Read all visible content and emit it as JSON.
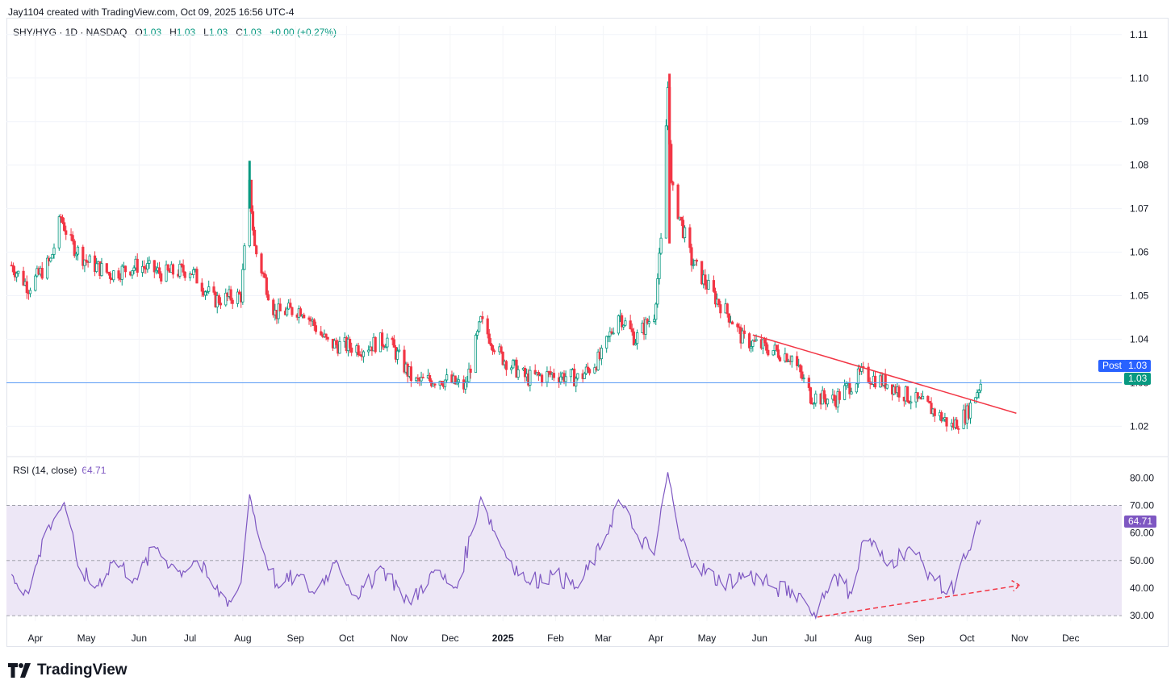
{
  "header": {
    "attribution": "Jay1104 created with TradingView.com, Oct 09, 2025 16:56 UTC-4"
  },
  "legend": {
    "symbol": "SHY/HYG · 1D · NASDAQ",
    "o_label": "O",
    "o": "1.03",
    "h_label": "H",
    "h": "1.03",
    "l_label": "L",
    "l": "1.03",
    "c_label": "C",
    "c": "1.03",
    "change": "+0.00 (+0.27%)"
  },
  "rsi_legend": {
    "label": "RSI (14, close)",
    "value": "64.71"
  },
  "tags": {
    "post_label": "Post",
    "post_value": "1.03",
    "last_value": "1.03",
    "rsi_value": "64.71"
  },
  "brand": {
    "name": "TradingView"
  },
  "colors": {
    "up": "#089981",
    "down": "#f23645",
    "rsi": "#7e57c2",
    "trendline": "#f23645",
    "lastline": "#5b9cf6",
    "post_tag": "#2962ff",
    "rsi_band": "#ede7f6"
  },
  "chart_data": [
    {
      "type": "candlestick",
      "title": "SHY/HYG · 1D · NASDAQ",
      "ylim": [
        1.016,
        1.112
      ],
      "y_ticks": [
        "1.11",
        "1.10",
        "1.09",
        "1.08",
        "1.07",
        "1.06",
        "1.05",
        "1.04",
        "1.03",
        "1.02"
      ],
      "x_ticks": [
        "Apr",
        "May",
        "Jun",
        "Jul",
        "Aug",
        "Sep",
        "Oct",
        "Nov",
        "Dec",
        "2025",
        "Feb",
        "Mar",
        "Apr",
        "May",
        "Jun",
        "Jul",
        "Aug",
        "Sep",
        "Oct",
        "Nov",
        "Dec"
      ],
      "x_range": [
        "2024-03-15",
        "2025-12-31"
      ],
      "close_path": [
        [
          "2024-03-18",
          1.057
        ],
        [
          "2024-03-28",
          1.052
        ],
        [
          "2024-04-10",
          1.058
        ],
        [
          "2024-04-16",
          1.068
        ],
        [
          "2024-04-22",
          1.062
        ],
        [
          "2024-05-01",
          1.058
        ],
        [
          "2024-05-15",
          1.055
        ],
        [
          "2024-06-01",
          1.057
        ],
        [
          "2024-06-15",
          1.055
        ],
        [
          "2024-07-01",
          1.056
        ],
        [
          "2024-07-15",
          1.049
        ],
        [
          "2024-07-31",
          1.05
        ],
        [
          "2024-08-05",
          1.075
        ],
        [
          "2024-08-08",
          1.061
        ],
        [
          "2024-08-20",
          1.046
        ],
        [
          "2024-09-05",
          1.047
        ],
        [
          "2024-09-20",
          1.039
        ],
        [
          "2024-10-10",
          1.038
        ],
        [
          "2024-10-25",
          1.04
        ],
        [
          "2024-11-10",
          1.03
        ],
        [
          "2024-11-25",
          1.031
        ],
        [
          "2024-12-10",
          1.029
        ],
        [
          "2024-12-19",
          1.044
        ],
        [
          "2024-12-31",
          1.036
        ],
        [
          "2025-01-15",
          1.031
        ],
        [
          "2025-01-31",
          1.032
        ],
        [
          "2025-02-15",
          1.031
        ],
        [
          "2025-02-28",
          1.036
        ],
        [
          "2025-03-10",
          1.046
        ],
        [
          "2025-03-20",
          1.04
        ],
        [
          "2025-03-31",
          1.046
        ],
        [
          "2025-04-04",
          1.062
        ],
        [
          "2025-04-08",
          1.098
        ],
        [
          "2025-04-10",
          1.075
        ],
        [
          "2025-04-15",
          1.068
        ],
        [
          "2025-04-22",
          1.058
        ],
        [
          "2025-05-05",
          1.05
        ],
        [
          "2025-05-15",
          1.045
        ],
        [
          "2025-05-22",
          1.04
        ],
        [
          "2025-06-05",
          1.038
        ],
        [
          "2025-06-20",
          1.036
        ],
        [
          "2025-07-01",
          1.027
        ],
        [
          "2025-07-15",
          1.026
        ],
        [
          "2025-07-31",
          1.032
        ],
        [
          "2025-08-15",
          1.03
        ],
        [
          "2025-08-31",
          1.026
        ],
        [
          "2025-09-10",
          1.024
        ],
        [
          "2025-09-22",
          1.02
        ],
        [
          "2025-10-01",
          1.023
        ],
        [
          "2025-10-09",
          1.03
        ]
      ],
      "trendline": [
        [
          "2025-05-28",
          1.041
        ],
        [
          "2025-10-30",
          1.023
        ]
      ],
      "last_close": 1.03
    },
    {
      "type": "line",
      "title": "RSI (14, close)",
      "ylim": [
        28,
        83
      ],
      "y_ticks": [
        "80.00",
        "70.00",
        "60.00",
        "50.00",
        "40.00",
        "30.00"
      ],
      "levels": [
        70,
        50,
        30
      ],
      "series": [
        {
          "name": "RSI (14, close)",
          "points": [
            [
              "2024-03-18",
              45
            ],
            [
              "2024-03-28",
              38
            ],
            [
              "2024-04-08",
              62
            ],
            [
              "2024-04-18",
              71
            ],
            [
              "2024-04-26",
              48
            ],
            [
              "2024-05-06",
              40
            ],
            [
              "2024-05-17",
              50
            ],
            [
              "2024-05-31",
              43
            ],
            [
              "2024-06-10",
              55
            ],
            [
              "2024-06-24",
              46
            ],
            [
              "2024-07-05",
              50
            ],
            [
              "2024-07-15",
              40
            ],
            [
              "2024-07-25",
              35
            ],
            [
              "2024-07-31",
              42
            ],
            [
              "2024-08-05",
              74
            ],
            [
              "2024-08-12",
              55
            ],
            [
              "2024-08-22",
              40
            ],
            [
              "2024-09-02",
              45
            ],
            [
              "2024-09-12",
              38
            ],
            [
              "2024-09-25",
              50
            ],
            [
              "2024-10-08",
              36
            ],
            [
              "2024-10-21",
              48
            ],
            [
              "2024-11-01",
              40
            ],
            [
              "2024-11-08",
              34
            ],
            [
              "2024-11-20",
              46
            ],
            [
              "2024-12-05",
              40
            ],
            [
              "2024-12-19",
              73
            ],
            [
              "2024-12-31",
              55
            ],
            [
              "2025-01-15",
              42
            ],
            [
              "2025-01-31",
              45
            ],
            [
              "2025-02-14",
              40
            ],
            [
              "2025-02-28",
              55
            ],
            [
              "2025-03-10",
              72
            ],
            [
              "2025-03-20",
              60
            ],
            [
              "2025-03-31",
              52
            ],
            [
              "2025-04-08",
              82
            ],
            [
              "2025-04-15",
              58
            ],
            [
              "2025-04-25",
              48
            ],
            [
              "2025-05-10",
              42
            ],
            [
              "2025-05-25",
              45
            ],
            [
              "2025-06-10",
              40
            ],
            [
              "2025-06-25",
              38
            ],
            [
              "2025-07-02",
              30
            ],
            [
              "2025-07-15",
              45
            ],
            [
              "2025-07-25",
              38
            ],
            [
              "2025-08-02",
              60
            ],
            [
              "2025-08-15",
              48
            ],
            [
              "2025-08-28",
              55
            ],
            [
              "2025-09-10",
              45
            ],
            [
              "2025-09-20",
              37
            ],
            [
              "2025-10-01",
              52
            ],
            [
              "2025-10-09",
              64.71
            ]
          ]
        }
      ],
      "annotation": {
        "style": "dashed-arrow",
        "from": [
          "2025-07-05",
          29.5
        ],
        "to": [
          "2025-11-01",
          41
        ]
      }
    }
  ]
}
